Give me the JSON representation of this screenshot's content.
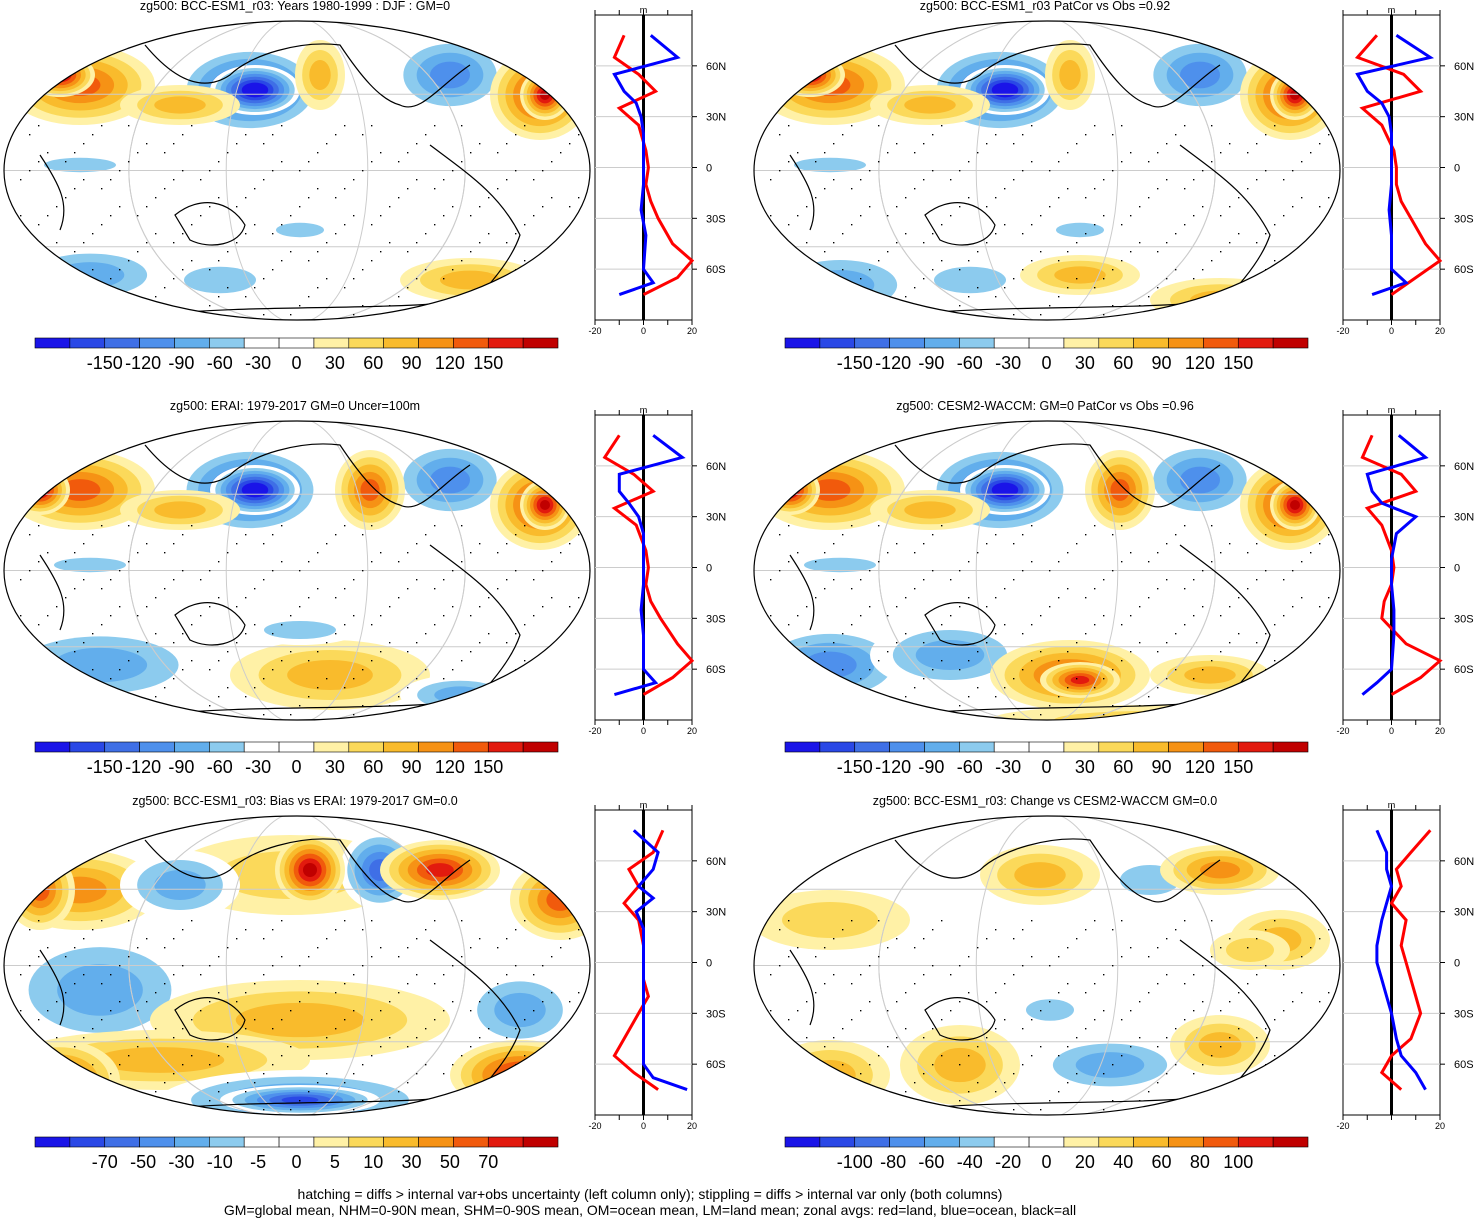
{
  "chart_data": [
    {
      "type": "heatmap",
      "title": "zg500: BCC-ESM1_r03: Years 1980-1999 : DJF : GM=0",
      "colorbar_ticks": [
        "-150",
        "-120",
        "-90",
        "-60",
        "-30",
        "0",
        "30",
        "60",
        "90",
        "120",
        "150"
      ],
      "zonal_unit": "m",
      "zonal_xticks": [
        "-20",
        "0",
        "20"
      ],
      "zonal_yticks": [
        "60N",
        "30N",
        "0",
        "30S",
        "60S"
      ],
      "zonal_land_red": [
        [
          -8,
          78
        ],
        [
          -12,
          65
        ],
        [
          -2,
          55
        ],
        [
          5,
          45
        ],
        [
          -10,
          35
        ],
        [
          -2,
          25
        ],
        [
          1,
          10
        ],
        [
          2,
          0
        ],
        [
          1,
          -10
        ],
        [
          3,
          -20
        ],
        [
          6,
          -30
        ],
        [
          12,
          -45
        ],
        [
          20,
          -55
        ],
        [
          14,
          -65
        ],
        [
          0,
          -75
        ]
      ],
      "zonal_ocean_blue": [
        [
          3,
          78
        ],
        [
          14,
          65
        ],
        [
          -12,
          55
        ],
        [
          -8,
          45
        ],
        [
          -3,
          38
        ],
        [
          -1,
          30
        ],
        [
          0,
          20
        ],
        [
          0,
          5
        ],
        [
          0,
          -10
        ],
        [
          -1,
          -25
        ],
        [
          1,
          -40
        ],
        [
          0,
          -60
        ],
        [
          4,
          -68
        ],
        [
          -10,
          -75
        ]
      ]
    },
    {
      "type": "heatmap",
      "title": "zg500: BCC-ESM1_r03 PatCor vs Obs =0.92",
      "colorbar_ticks": [
        "-150",
        "-120",
        "-90",
        "-60",
        "-30",
        "0",
        "30",
        "60",
        "90",
        "120",
        "150"
      ],
      "zonal_unit": "m",
      "zonal_xticks": [
        "-20",
        "0",
        "20"
      ],
      "zonal_yticks": [
        "60N",
        "30N",
        "0",
        "30S",
        "60S"
      ],
      "zonal_land_red": [
        [
          -6,
          78
        ],
        [
          -14,
          65
        ],
        [
          5,
          55
        ],
        [
          12,
          45
        ],
        [
          -12,
          35
        ],
        [
          -4,
          25
        ],
        [
          1,
          10
        ],
        [
          2,
          0
        ],
        [
          2,
          -10
        ],
        [
          4,
          -20
        ],
        [
          8,
          -30
        ],
        [
          14,
          -45
        ],
        [
          20,
          -55
        ],
        [
          10,
          -65
        ],
        [
          0,
          -75
        ]
      ],
      "zonal_ocean_blue": [
        [
          2,
          78
        ],
        [
          16,
          65
        ],
        [
          -14,
          55
        ],
        [
          -10,
          45
        ],
        [
          -4,
          38
        ],
        [
          -1,
          30
        ],
        [
          0,
          20
        ],
        [
          0,
          5
        ],
        [
          0,
          -10
        ],
        [
          -1,
          -25
        ],
        [
          0,
          -40
        ],
        [
          0,
          -60
        ],
        [
          6,
          -68
        ],
        [
          -8,
          -75
        ]
      ]
    },
    {
      "type": "heatmap",
      "title": "zg500: ERAI: 1979-2017 GM=0 Uncer=100m",
      "colorbar_ticks": [
        "-150",
        "-120",
        "-90",
        "-60",
        "-30",
        "0",
        "30",
        "60",
        "90",
        "120",
        "150"
      ],
      "zonal_unit": "m",
      "zonal_xticks": [
        "-20",
        "0",
        "20"
      ],
      "zonal_yticks": [
        "60N",
        "30N",
        "0",
        "30S",
        "60S"
      ],
      "zonal_land_red": [
        [
          -10,
          78
        ],
        [
          -16,
          65
        ],
        [
          -4,
          55
        ],
        [
          4,
          45
        ],
        [
          -12,
          35
        ],
        [
          -3,
          25
        ],
        [
          1,
          10
        ],
        [
          2,
          0
        ],
        [
          1,
          -10
        ],
        [
          3,
          -20
        ],
        [
          7,
          -30
        ],
        [
          14,
          -45
        ],
        [
          20,
          -55
        ],
        [
          12,
          -65
        ],
        [
          0,
          -75
        ]
      ],
      "zonal_ocean_blue": [
        [
          4,
          78
        ],
        [
          16,
          65
        ],
        [
          -10,
          55
        ],
        [
          -10,
          45
        ],
        [
          -6,
          38
        ],
        [
          -2,
          30
        ],
        [
          0,
          20
        ],
        [
          0,
          5
        ],
        [
          0,
          -10
        ],
        [
          -1,
          -25
        ],
        [
          0,
          -40
        ],
        [
          0,
          -60
        ],
        [
          5,
          -68
        ],
        [
          -12,
          -75
        ]
      ]
    },
    {
      "type": "heatmap",
      "title": "zg500: CESM2-WACCM: GM=0 PatCor vs Obs =0.96",
      "colorbar_ticks": [
        "-150",
        "-120",
        "-90",
        "-60",
        "-30",
        "0",
        "30",
        "60",
        "90",
        "120",
        "150"
      ],
      "zonal_unit": "m",
      "zonal_xticks": [
        "-20",
        "0",
        "20"
      ],
      "zonal_yticks": [
        "60N",
        "30N",
        "0",
        "30S",
        "60S"
      ],
      "zonal_land_red": [
        [
          -8,
          78
        ],
        [
          -12,
          65
        ],
        [
          4,
          55
        ],
        [
          10,
          45
        ],
        [
          -10,
          35
        ],
        [
          -4,
          25
        ],
        [
          0,
          10
        ],
        [
          1,
          0
        ],
        [
          0,
          -10
        ],
        [
          -3,
          -20
        ],
        [
          -4,
          -30
        ],
        [
          6,
          -45
        ],
        [
          20,
          -55
        ],
        [
          12,
          -65
        ],
        [
          0,
          -75
        ]
      ],
      "zonal_ocean_blue": [
        [
          3,
          78
        ],
        [
          14,
          65
        ],
        [
          -10,
          55
        ],
        [
          -8,
          45
        ],
        [
          -4,
          38
        ],
        [
          10,
          30
        ],
        [
          2,
          20
        ],
        [
          0,
          5
        ],
        [
          0,
          -10
        ],
        [
          1,
          -25
        ],
        [
          1,
          -40
        ],
        [
          0,
          -60
        ],
        [
          -6,
          -68
        ],
        [
          -12,
          -75
        ]
      ]
    },
    {
      "type": "heatmap",
      "title": "zg500: BCC-ESM1_r03: Bias vs ERAI: 1979-2017 GM=0.0",
      "colorbar_ticks": [
        "-70",
        "-50",
        "-30",
        "-10",
        "-5",
        "0",
        "5",
        "10",
        "30",
        "50",
        "70"
      ],
      "zonal_unit": "m",
      "zonal_xticks": [
        "-20",
        "0",
        "20"
      ],
      "zonal_yticks": [
        "60N",
        "30N",
        "0",
        "30S",
        "60S"
      ],
      "zonal_land_red": [
        [
          8,
          78
        ],
        [
          4,
          65
        ],
        [
          -6,
          55
        ],
        [
          -2,
          45
        ],
        [
          -8,
          35
        ],
        [
          -2,
          25
        ],
        [
          0,
          10
        ],
        [
          0,
          0
        ],
        [
          0,
          -10
        ],
        [
          2,
          -20
        ],
        [
          -2,
          -30
        ],
        [
          -8,
          -45
        ],
        [
          -12,
          -55
        ],
        [
          -4,
          -65
        ],
        [
          6,
          -75
        ]
      ],
      "zonal_ocean_blue": [
        [
          -4,
          78
        ],
        [
          6,
          65
        ],
        [
          4,
          55
        ],
        [
          -2,
          45
        ],
        [
          4,
          38
        ],
        [
          -3,
          30
        ],
        [
          0,
          20
        ],
        [
          0,
          5
        ],
        [
          0,
          -10
        ],
        [
          0,
          -25
        ],
        [
          0,
          -40
        ],
        [
          0,
          -60
        ],
        [
          4,
          -68
        ],
        [
          18,
          -75
        ]
      ]
    },
    {
      "type": "heatmap",
      "title": "zg500: BCC-ESM1_r03: Change vs CESM2-WACCM GM=0.0",
      "colorbar_ticks": [
        "-100",
        "-80",
        "-60",
        "-40",
        "-20",
        "0",
        "20",
        "40",
        "60",
        "80",
        "100"
      ],
      "zonal_unit": "m",
      "zonal_xticks": [
        "-20",
        "20"
      ],
      "zonal_yticks": [
        "60N",
        "30N",
        "0",
        "30S",
        "60S"
      ],
      "zonal_land_red": [
        [
          16,
          78
        ],
        [
          8,
          65
        ],
        [
          2,
          55
        ],
        [
          4,
          45
        ],
        [
          0,
          35
        ],
        [
          6,
          25
        ],
        [
          4,
          10
        ],
        [
          6,
          0
        ],
        [
          8,
          -10
        ],
        [
          10,
          -20
        ],
        [
          12,
          -30
        ],
        [
          8,
          -45
        ],
        [
          0,
          -55
        ],
        [
          -4,
          -65
        ],
        [
          4,
          -75
        ]
      ],
      "zonal_ocean_blue": [
        [
          -6,
          78
        ],
        [
          -2,
          65
        ],
        [
          -2,
          55
        ],
        [
          0,
          45
        ],
        [
          -2,
          35
        ],
        [
          -4,
          25
        ],
        [
          -6,
          10
        ],
        [
          -6,
          0
        ],
        [
          -4,
          -10
        ],
        [
          -2,
          -20
        ],
        [
          0,
          -30
        ],
        [
          2,
          -45
        ],
        [
          4,
          -55
        ],
        [
          10,
          -65
        ],
        [
          14,
          -75
        ]
      ]
    }
  ],
  "footer": {
    "line1": "hatching = diffs > internal var+obs uncertainty (left column only); stippling = diffs > internal var only (both columns)",
    "line2": "GM=global mean, NHM=0-90N mean, SHM=0-90S mean, OM=ocean mean, LM=land mean; zonal avgs: red=land, blue=ocean, black=all"
  },
  "colors": {
    "palette": [
      "#1a14e8",
      "#2a48e6",
      "#3f6fe6",
      "#4e90ec",
      "#62aeec",
      "#8ccbee",
      "#ffffff",
      "#ffffff",
      "#fff1a6",
      "#fbd95a",
      "#f9bb2c",
      "#f69215",
      "#f15a0c",
      "#e21a0e",
      "#c00000"
    ],
    "land_line": "#ff0000",
    "ocean_line": "#0000ff",
    "all_line": "#000000"
  }
}
